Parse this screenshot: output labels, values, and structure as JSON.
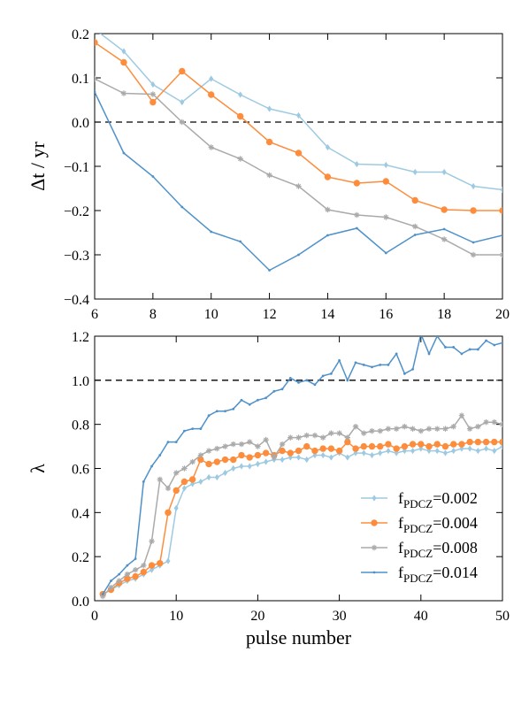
{
  "colors": {
    "light_blue": "#9ecae1",
    "orange": "#fd8d3c",
    "grey": "#aaaaaa",
    "dark_blue": "#4f91c9"
  },
  "chart_data": [
    {
      "type": "line",
      "xlabel": "",
      "ylabel": "Δt / yr",
      "xlim": [
        6,
        20
      ],
      "ylim": [
        -0.4,
        0.2
      ],
      "xticks": [
        "6",
        "8",
        "10",
        "12",
        "14",
        "16",
        "18",
        "20"
      ],
      "yticks": [
        "−0.4",
        "−0.3",
        "−0.2",
        "−0.1",
        "0.0",
        "0.1",
        "0.2"
      ],
      "reference_line": 0.0,
      "x": [
        6,
        7,
        8,
        9,
        10,
        11,
        12,
        13,
        14,
        15,
        16,
        17,
        18,
        19,
        20
      ],
      "series": [
        {
          "color": "#9ecae1",
          "marker": "diamond",
          "values": [
            0.21,
            0.16,
            0.085,
            0.045,
            0.098,
            0.062,
            0.03,
            0.015,
            -0.057,
            -0.095,
            -0.097,
            -0.113,
            -0.113,
            -0.145,
            -0.153
          ]
        },
        {
          "color": "#fd8d3c",
          "marker": "circle",
          "values": [
            0.18,
            0.135,
            0.045,
            0.115,
            0.062,
            0.013,
            -0.045,
            -0.07,
            -0.124,
            -0.138,
            -0.134,
            -0.177,
            -0.198,
            -0.2,
            -0.2
          ]
        },
        {
          "color": "#aaaaaa",
          "marker": "star",
          "values": [
            0.098,
            0.065,
            0.063,
            0.0,
            -0.057,
            -0.083,
            -0.12,
            -0.145,
            -0.198,
            -0.21,
            -0.215,
            -0.236,
            -0.265,
            -0.3,
            -0.3
          ]
        },
        {
          "color": "#4f91c9",
          "marker": "point",
          "values": [
            0.068,
            -0.07,
            -0.123,
            -0.192,
            -0.248,
            -0.27,
            -0.335,
            -0.3,
            -0.256,
            -0.24,
            -0.296,
            -0.255,
            -0.242,
            -0.272,
            -0.256
          ]
        }
      ]
    },
    {
      "type": "line",
      "xlabel": "pulse number",
      "ylabel": "λ",
      "xlim": [
        0,
        50
      ],
      "ylim": [
        0.0,
        1.2
      ],
      "xticks": [
        "0",
        "10",
        "20",
        "30",
        "40",
        "50"
      ],
      "yticks": [
        "0.0",
        "0.2",
        "0.4",
        "0.6",
        "0.8",
        "1.0",
        "1.2"
      ],
      "reference_line": 1.0,
      "legend": {
        "placement": "lower-right",
        "entries": [
          {
            "prefix": "f",
            "sub": "PDCZ",
            "value": "=0.002"
          },
          {
            "prefix": "f",
            "sub": "PDCZ",
            "value": "=0.004"
          },
          {
            "prefix": "f",
            "sub": "PDCZ",
            "value": "=0.008"
          },
          {
            "prefix": "f",
            "sub": "PDCZ",
            "value": "=0.014"
          }
        ]
      },
      "series": [
        {
          "color": "#9ecae1",
          "marker": "diamond",
          "x": [
            1,
            2,
            3,
            4,
            5,
            6,
            7,
            8,
            9,
            10,
            11,
            12,
            13,
            14,
            15,
            16,
            17,
            18,
            19,
            20,
            21,
            22,
            23,
            24,
            25,
            26,
            27,
            28,
            29,
            30,
            31,
            32,
            33,
            34,
            35,
            36,
            37,
            38,
            39,
            40,
            41,
            42,
            43,
            44,
            45,
            46,
            47,
            48,
            49,
            50
          ],
          "values": [
            0.03,
            0.05,
            0.07,
            0.09,
            0.1,
            0.12,
            0.14,
            0.16,
            0.18,
            0.42,
            0.51,
            0.53,
            0.54,
            0.56,
            0.56,
            0.58,
            0.6,
            0.61,
            0.61,
            0.62,
            0.63,
            0.64,
            0.64,
            0.65,
            0.65,
            0.64,
            0.66,
            0.66,
            0.65,
            0.67,
            0.65,
            0.67,
            0.67,
            0.66,
            0.67,
            0.68,
            0.67,
            0.68,
            0.68,
            0.69,
            0.68,
            0.68,
            0.67,
            0.68,
            0.69,
            0.69,
            0.68,
            0.69,
            0.68,
            0.7
          ]
        },
        {
          "color": "#fd8d3c",
          "marker": "circle",
          "x": [
            1,
            2,
            3,
            4,
            5,
            6,
            7,
            8,
            9,
            10,
            11,
            12,
            13,
            14,
            15,
            16,
            17,
            18,
            19,
            20,
            21,
            22,
            23,
            24,
            25,
            26,
            27,
            28,
            29,
            30,
            31,
            32,
            33,
            34,
            35,
            36,
            37,
            38,
            39,
            40,
            41,
            42,
            43,
            44,
            45,
            46,
            47,
            48,
            49,
            50
          ],
          "values": [
            0.03,
            0.05,
            0.08,
            0.1,
            0.11,
            0.13,
            0.16,
            0.17,
            0.4,
            0.5,
            0.54,
            0.55,
            0.64,
            0.62,
            0.63,
            0.64,
            0.64,
            0.66,
            0.65,
            0.66,
            0.67,
            0.66,
            0.68,
            0.67,
            0.68,
            0.7,
            0.68,
            0.69,
            0.69,
            0.68,
            0.72,
            0.69,
            0.7,
            0.7,
            0.7,
            0.71,
            0.69,
            0.7,
            0.71,
            0.71,
            0.7,
            0.71,
            0.7,
            0.71,
            0.71,
            0.72,
            0.72,
            0.72,
            0.72,
            0.72
          ]
        },
        {
          "color": "#aaaaaa",
          "marker": "star",
          "x": [
            1,
            2,
            3,
            4,
            5,
            6,
            7,
            8,
            9,
            10,
            11,
            12,
            13,
            14,
            15,
            16,
            17,
            18,
            19,
            20,
            21,
            22,
            23,
            24,
            25,
            26,
            27,
            28,
            29,
            30,
            31,
            32,
            33,
            34,
            35,
            36,
            37,
            38,
            39,
            40,
            41,
            42,
            43,
            44,
            45,
            46,
            47,
            48,
            49,
            50
          ],
          "values": [
            0.02,
            0.06,
            0.09,
            0.12,
            0.14,
            0.16,
            0.27,
            0.55,
            0.51,
            0.58,
            0.6,
            0.63,
            0.66,
            0.68,
            0.69,
            0.7,
            0.71,
            0.71,
            0.72,
            0.7,
            0.73,
            0.65,
            0.71,
            0.74,
            0.74,
            0.75,
            0.75,
            0.74,
            0.76,
            0.76,
            0.74,
            0.79,
            0.76,
            0.77,
            0.77,
            0.78,
            0.78,
            0.79,
            0.78,
            0.77,
            0.78,
            0.78,
            0.78,
            0.79,
            0.84,
            0.78,
            0.79,
            0.81,
            0.81,
            0.8
          ]
        },
        {
          "color": "#4f91c9",
          "marker": "point",
          "x": [
            1,
            2,
            3,
            4,
            5,
            6,
            7,
            8,
            9,
            10,
            11,
            12,
            13,
            14,
            15,
            16,
            17,
            18,
            19,
            20,
            21,
            22,
            23,
            24,
            25,
            26,
            27,
            28,
            29,
            30,
            31,
            32,
            33,
            34,
            35,
            36,
            37,
            38,
            39,
            40,
            41,
            42,
            43,
            44,
            45,
            46,
            47,
            48,
            49,
            50
          ],
          "values": [
            0.03,
            0.09,
            0.12,
            0.16,
            0.19,
            0.54,
            0.61,
            0.66,
            0.72,
            0.72,
            0.77,
            0.78,
            0.78,
            0.84,
            0.86,
            0.86,
            0.87,
            0.91,
            0.89,
            0.91,
            0.92,
            0.95,
            0.96,
            1.01,
            0.99,
            1.0,
            0.98,
            1.02,
            1.03,
            1.09,
            1.0,
            1.08,
            1.07,
            1.06,
            1.07,
            1.07,
            1.12,
            1.03,
            1.05,
            1.21,
            1.12,
            1.2,
            1.15,
            1.15,
            1.12,
            1.14,
            1.14,
            1.18,
            1.16,
            1.17
          ]
        }
      ]
    }
  ]
}
